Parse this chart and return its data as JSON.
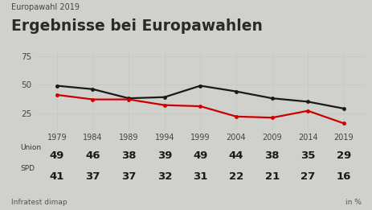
{
  "title_small": "Europawahl 2019",
  "title_large": "Ergebnisse bei Europawahlen",
  "years": [
    1979,
    1984,
    1989,
    1994,
    1999,
    2004,
    2009,
    2014,
    2019
  ],
  "union_values": [
    49,
    46,
    38,
    39,
    49,
    44,
    38,
    35,
    29
  ],
  "spd_values": [
    41,
    37,
    37,
    32,
    31,
    22,
    21,
    27,
    16
  ],
  "union_color": "#1a1a1a",
  "spd_color": "#cc0000",
  "background_color": "#d0d0cc",
  "table_bg_color": "#f0f0ee",
  "grid_color": "#c8c8c4",
  "yticks": [
    25,
    50,
    75
  ],
  "ylim": [
    10,
    80
  ],
  "xlim": [
    1976,
    2022
  ],
  "source": "Infratest dimap",
  "unit": "in %"
}
